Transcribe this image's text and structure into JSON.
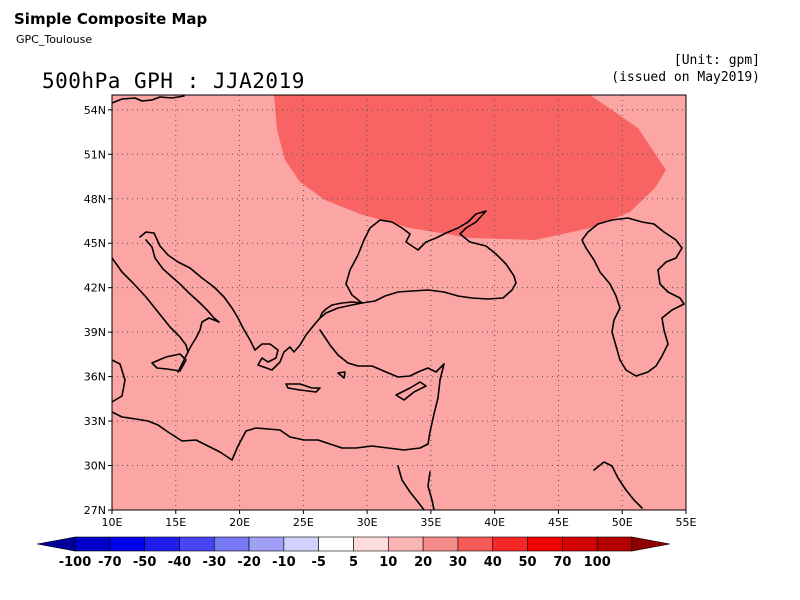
{
  "header": {
    "title": "Simple Composite Map",
    "subtitle": "GPC_Toulouse",
    "unit": "[Unit: gpm]",
    "issued": "(issued on May2019)"
  },
  "map": {
    "title": "500hPa GPH : JJA2019",
    "lon_range": [
      10,
      55
    ],
    "lat_range": [
      27,
      55
    ],
    "lon_ticks": [
      "10E",
      "15E",
      "20E",
      "25E",
      "30E",
      "35E",
      "40E",
      "45E",
      "50E",
      "55E"
    ],
    "lat_ticks": [
      "27N",
      "30N",
      "33N",
      "36N",
      "39N",
      "42N",
      "45N",
      "48N",
      "51N",
      "54N"
    ],
    "grid": "dotted",
    "background_anomaly_class": "20 to 30",
    "background_color": "#fca5a5",
    "anomaly_region_class": "30 to 40",
    "anomaly_region_color": "#f86464"
  },
  "colorbar": {
    "labels": [
      "-100",
      "-70",
      "-50",
      "-40",
      "-30",
      "-20",
      "-10",
      "-5",
      "5",
      "10",
      "20",
      "30",
      "40",
      "50",
      "70",
      "100"
    ],
    "colors": [
      "#0000c8",
      "#0000e6",
      "#1e1ef0",
      "#4646f5",
      "#7878f5",
      "#a0a0f8",
      "#d2d2fc",
      "#ffffff",
      "#ffdcdc",
      "#fcb4b4",
      "#f88c8c",
      "#f85a5a",
      "#f82828",
      "#f00000",
      "#d20000",
      "#b40000"
    ]
  }
}
